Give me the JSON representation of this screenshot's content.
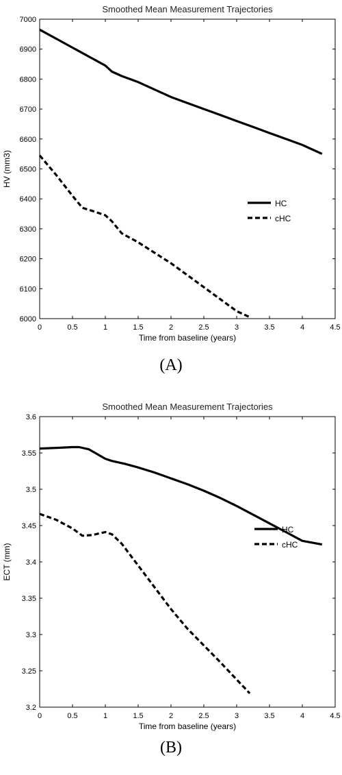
{
  "chart_data": [
    {
      "type": "line",
      "title": "Smoothed Mean Measurement Trajectories",
      "xlabel": "Time from baseline (years)",
      "ylabel": "HV (mm3)",
      "xlim": [
        0,
        4.5
      ],
      "ylim": [
        6000,
        7000
      ],
      "xticks": [
        "0",
        "0.5",
        "1",
        "1.5",
        "2",
        "2.5",
        "3",
        "3.5",
        "4",
        "4.5"
      ],
      "yticks": [
        "6000",
        "6100",
        "6200",
        "6300",
        "6400",
        "6500",
        "6600",
        "6700",
        "6800",
        "6900",
        "7000"
      ],
      "grid": false,
      "legend_position": "right-middle",
      "panel_label": "(A)",
      "series": [
        {
          "name": "HC",
          "style": "solid",
          "x": [
            0,
            0.25,
            0.5,
            0.75,
            1.0,
            1.1,
            1.25,
            1.5,
            1.75,
            2.0,
            2.25,
            2.5,
            2.75,
            3.0,
            3.25,
            3.5,
            3.75,
            4.0,
            4.3
          ],
          "y": [
            6965,
            6935,
            6905,
            6875,
            6845,
            6825,
            6810,
            6790,
            6765,
            6740,
            6720,
            6700,
            6680,
            6660,
            6640,
            6620,
            6600,
            6580,
            6550
          ]
        },
        {
          "name": "cHC",
          "style": "dashed",
          "x": [
            0,
            0.25,
            0.5,
            0.65,
            0.8,
            1.0,
            1.1,
            1.25,
            1.5,
            1.75,
            2.0,
            2.25,
            2.5,
            2.75,
            3.0,
            3.2
          ],
          "y": [
            6545,
            6480,
            6410,
            6370,
            6360,
            6345,
            6325,
            6285,
            6255,
            6220,
            6185,
            6145,
            6105,
            6065,
            6025,
            6005
          ]
        }
      ]
    },
    {
      "type": "line",
      "title": "Smoothed Mean Measurement Trajectories",
      "xlabel": "Time from baseline (years)",
      "ylabel": "ECT (mm)",
      "xlim": [
        0,
        4.5
      ],
      "ylim": [
        3.2,
        3.6
      ],
      "xticks": [
        "0",
        "0.5",
        "1",
        "1.5",
        "2",
        "2.5",
        "3",
        "3.5",
        "4",
        "4.5"
      ],
      "yticks": [
        "3.2",
        "3.25",
        "3.3",
        "3.35",
        "3.4",
        "3.45",
        "3.5",
        "3.55",
        "3.6"
      ],
      "grid": false,
      "legend_position": "right-middle",
      "panel_label": "(B)",
      "series": [
        {
          "name": "HC",
          "style": "solid",
          "x": [
            0,
            0.25,
            0.5,
            0.6,
            0.75,
            1.0,
            1.1,
            1.3,
            1.5,
            1.75,
            2.0,
            2.25,
            2.5,
            2.75,
            3.0,
            3.25,
            3.5,
            3.75,
            4.0,
            4.3
          ],
          "y": [
            3.556,
            3.557,
            3.558,
            3.558,
            3.555,
            3.542,
            3.539,
            3.535,
            3.53,
            3.523,
            3.515,
            3.507,
            3.498,
            3.488,
            3.477,
            3.465,
            3.453,
            3.441,
            3.429,
            3.424
          ]
        },
        {
          "name": "cHC",
          "style": "dashed",
          "x": [
            0,
            0.25,
            0.5,
            0.65,
            0.8,
            1.0,
            1.1,
            1.25,
            1.5,
            1.75,
            2.0,
            2.25,
            2.5,
            2.75,
            3.0,
            3.2
          ],
          "y": [
            3.466,
            3.458,
            3.446,
            3.436,
            3.437,
            3.441,
            3.438,
            3.425,
            3.395,
            3.365,
            3.335,
            3.308,
            3.285,
            3.262,
            3.238,
            3.219
          ]
        }
      ]
    }
  ]
}
